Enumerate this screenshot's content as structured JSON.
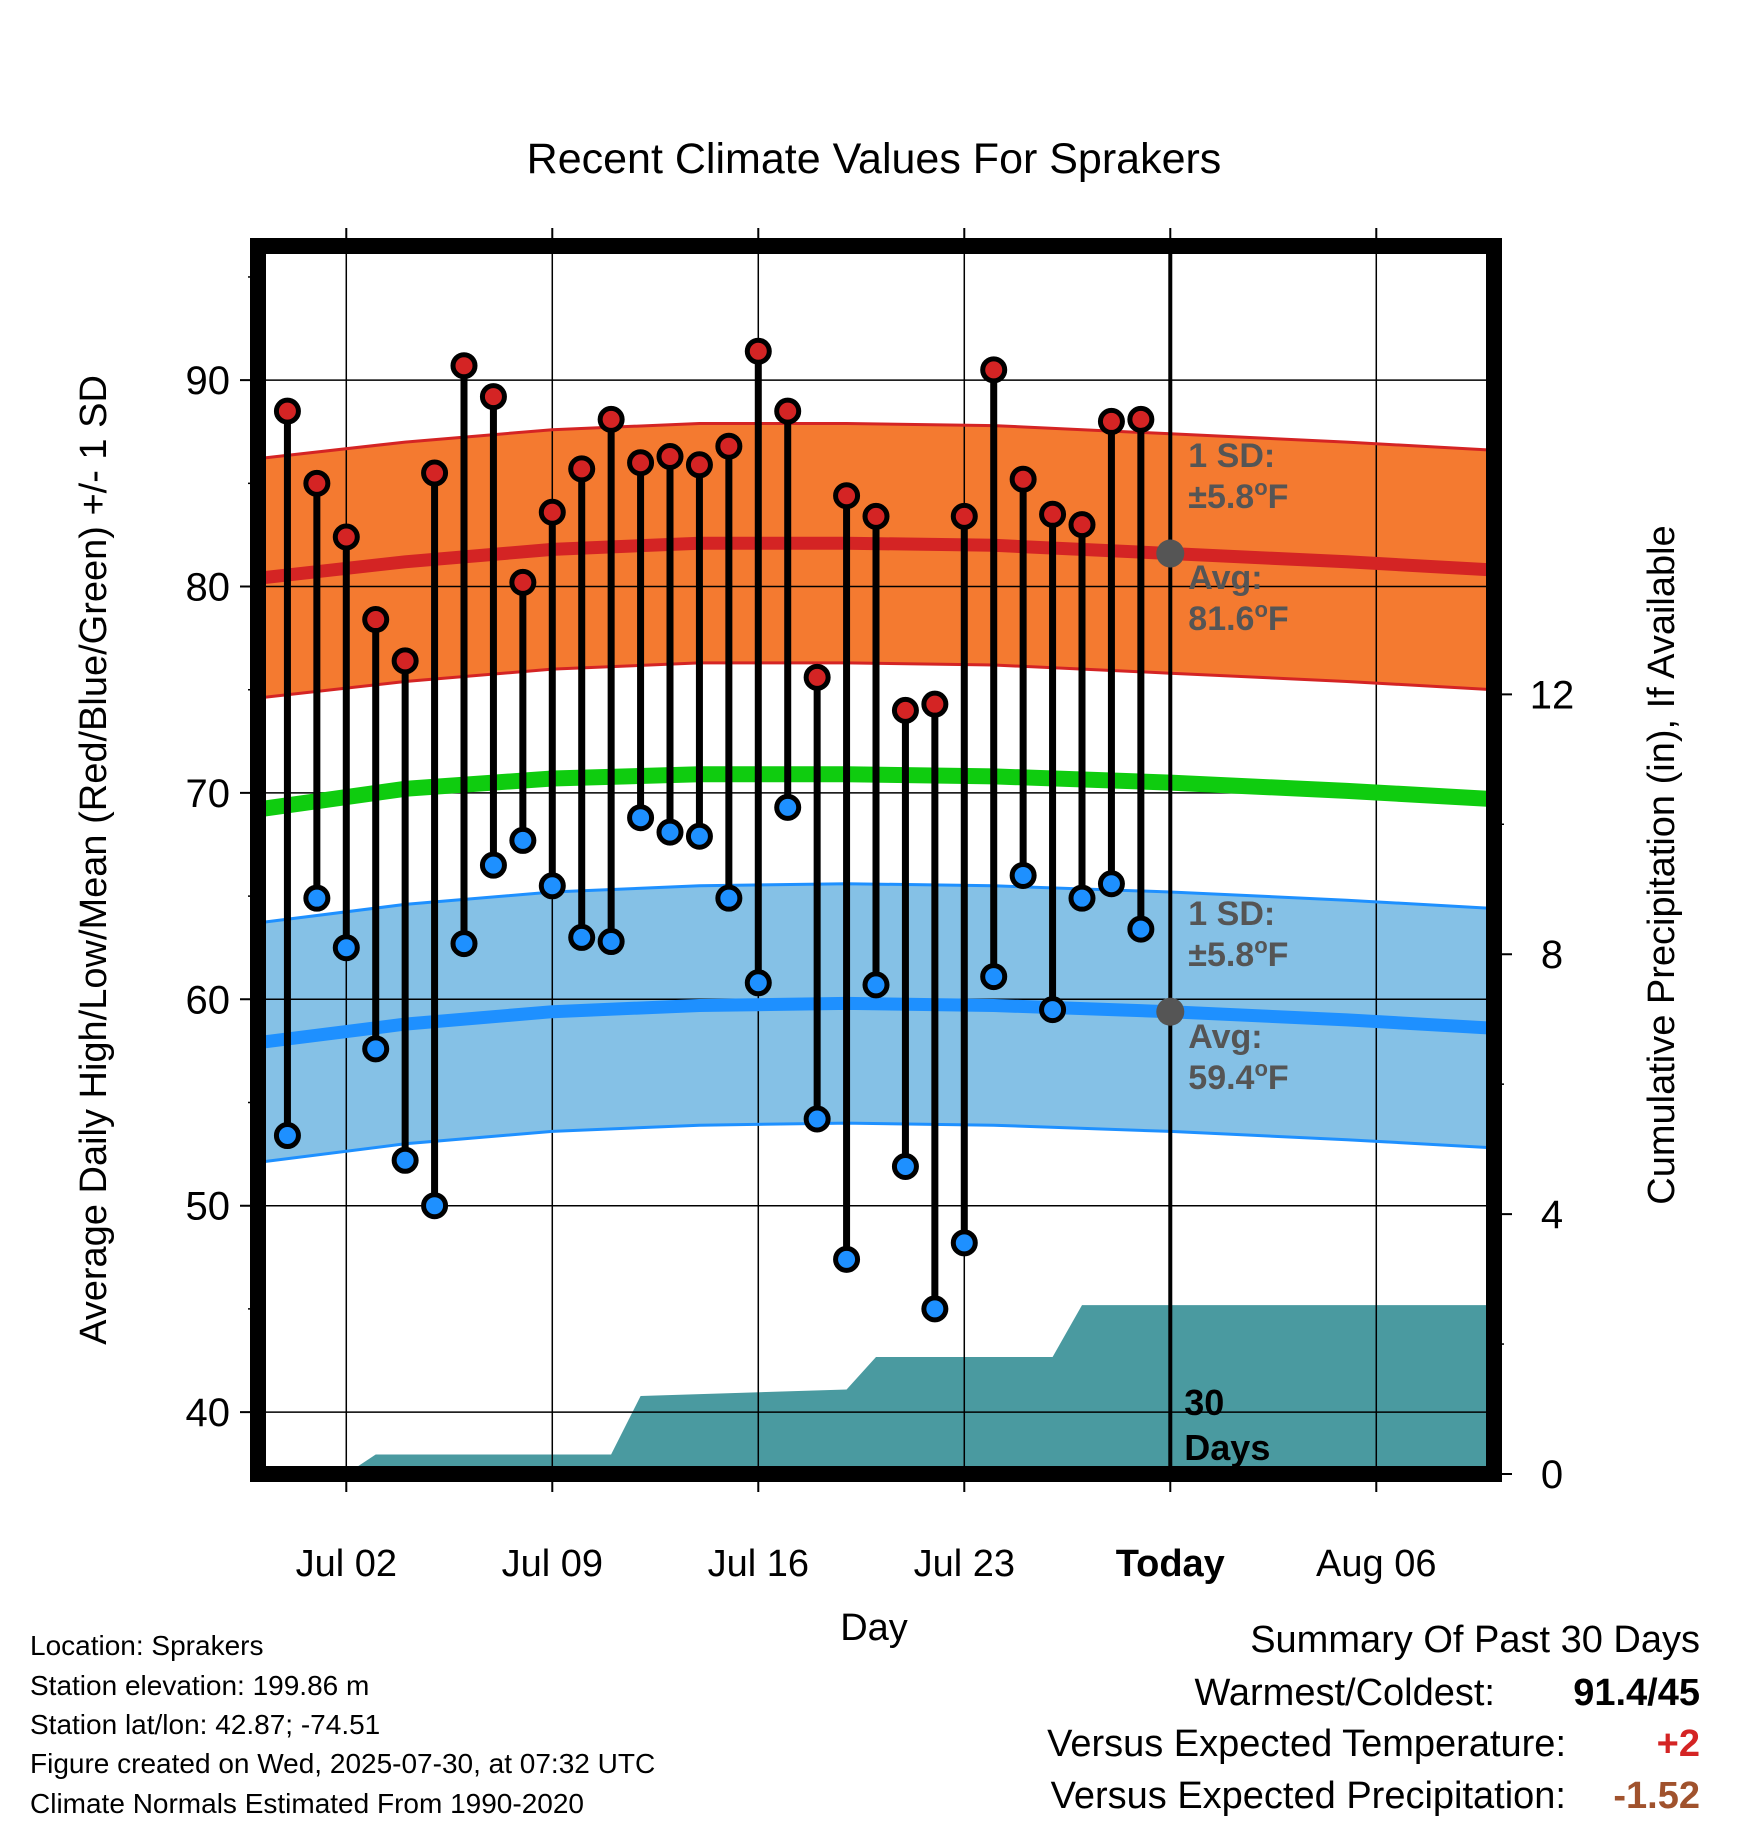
{
  "chart_data": {
    "type": "line",
    "title": "Recent Climate Values For Sprakers",
    "xlabel": "Day",
    "ylabel": "Average Daily High/Low/Mean (Red/Blue/Green) +/- 1 SD",
    "y2label": "Cumulative Precipitation (in), If Available",
    "ylim": [
      37,
      96.5
    ],
    "y2lim": [
      0,
      18.9
    ],
    "xlim": [
      "2025-06-29",
      "2025-08-10"
    ],
    "x_ticks": [
      {
        "date": "2025-07-02",
        "label": "Jul 02"
      },
      {
        "date": "2025-07-09",
        "label": "Jul 09"
      },
      {
        "date": "2025-07-16",
        "label": "Jul 16"
      },
      {
        "date": "2025-07-23",
        "label": "Jul 23"
      },
      {
        "date": "2025-07-30",
        "label": "Today"
      },
      {
        "date": "2025-08-06",
        "label": "Aug 06"
      }
    ],
    "y_ticks": [
      40,
      50,
      60,
      70,
      80,
      90
    ],
    "y2_ticks": [
      0,
      4,
      8,
      12
    ],
    "grid": true,
    "today": "2025-07-30",
    "dates": [
      "2025-06-30",
      "2025-07-01",
      "2025-07-02",
      "2025-07-03",
      "2025-07-04",
      "2025-07-05",
      "2025-07-06",
      "2025-07-07",
      "2025-07-08",
      "2025-07-09",
      "2025-07-10",
      "2025-07-11",
      "2025-07-12",
      "2025-07-13",
      "2025-07-14",
      "2025-07-15",
      "2025-07-16",
      "2025-07-17",
      "2025-07-18",
      "2025-07-19",
      "2025-07-20",
      "2025-07-21",
      "2025-07-22",
      "2025-07-23",
      "2025-07-24",
      "2025-07-25",
      "2025-07-26",
      "2025-07-27",
      "2025-07-28",
      "2025-07-29"
    ],
    "observed_high": [
      88.5,
      85.0,
      82.4,
      78.4,
      76.4,
      85.5,
      90.7,
      89.2,
      80.2,
      83.6,
      85.7,
      88.1,
      86.0,
      86.3,
      85.9,
      86.8,
      91.4,
      88.5,
      75.6,
      84.4,
      83.4,
      74.0,
      74.3,
      83.4,
      90.5,
      85.2,
      83.5,
      83.0,
      88.0,
      88.1
    ],
    "observed_low": [
      53.4,
      64.9,
      62.5,
      57.6,
      52.2,
      50.0,
      62.7,
      66.5,
      67.7,
      65.5,
      63.0,
      62.8,
      68.8,
      68.1,
      67.9,
      64.9,
      60.8,
      69.3,
      54.2,
      47.4,
      60.7,
      51.9,
      45.0,
      48.2,
      61.1,
      66.0,
      59.5,
      64.9,
      65.6,
      63.4
    ],
    "normals": {
      "dates": [
        "2025-06-29",
        "2025-07-04",
        "2025-07-09",
        "2025-07-14",
        "2025-07-19",
        "2025-07-24",
        "2025-07-30",
        "2025-08-05",
        "2025-08-10"
      ],
      "avg_high": [
        80.4,
        81.2,
        81.8,
        82.1,
        82.1,
        82.0,
        81.6,
        81.2,
        80.8
      ],
      "avg_low": [
        57.9,
        58.8,
        59.4,
        59.7,
        59.8,
        59.7,
        59.4,
        59.0,
        58.6
      ],
      "avg_mean": [
        69.2,
        70.2,
        70.7,
        70.9,
        70.9,
        70.8,
        70.5,
        70.1,
        69.7
      ],
      "sd_high": 5.8,
      "sd_low": 5.8
    },
    "precip_cumulative": {
      "dates": [
        "2025-07-02",
        "2025-07-03",
        "2025-07-11",
        "2025-07-12",
        "2025-07-19",
        "2025-07-20",
        "2025-07-26",
        "2025-07-27",
        "2025-08-10"
      ],
      "values": [
        0.0,
        0.3,
        0.3,
        1.2,
        1.3,
        1.8,
        1.8,
        2.6,
        2.6
      ]
    },
    "series": [
      {
        "name": "High",
        "color": "#d42424"
      },
      {
        "name": "Low",
        "color": "#1e90ff"
      },
      {
        "name": "Mean",
        "color": "#0fcc0f"
      }
    ],
    "colors": {
      "high_band": "#f47a30",
      "high_edge": "#d42424",
      "low_band": "#85c1e6",
      "low_edge": "#1e90ff",
      "mean_line": "#0fcc0f",
      "precip_fill": "#4a9aa0",
      "annotation": "#555555"
    },
    "annotations": {
      "high_sd_label": "1 SD:",
      "high_sd_value": "±5.8",
      "high_avg_label": "Avg:",
      "high_avg_value": "81.6",
      "low_sd_label": "1 SD:",
      "low_sd_value": "±5.8",
      "low_avg_label": "Avg:",
      "low_avg_value": "59.4",
      "unit": "F",
      "degree": "o",
      "window_label_1": "30",
      "window_label_2": "Days"
    }
  },
  "info": {
    "location": "Location: Sprakers",
    "elevation": "Station elevation: 199.86 m",
    "latlon": "Station lat/lon: 42.87; -74.51",
    "created": "Figure created on Wed, 2025-07-30, at 07:32 UTC",
    "normals": "Climate Normals Estimated From 1990-2020"
  },
  "summary": {
    "title": "Summary Of Past 30 Days",
    "warm_cold_label": "Warmest/Coldest:",
    "warm_cold_value": "91.4/45",
    "temp_label": "Versus Expected Temperature:",
    "temp_value": "+2",
    "temp_color": "#d42424",
    "precip_label": "Versus Expected Precipitation:",
    "precip_value": "-1.52",
    "precip_color": "#a0522d"
  }
}
